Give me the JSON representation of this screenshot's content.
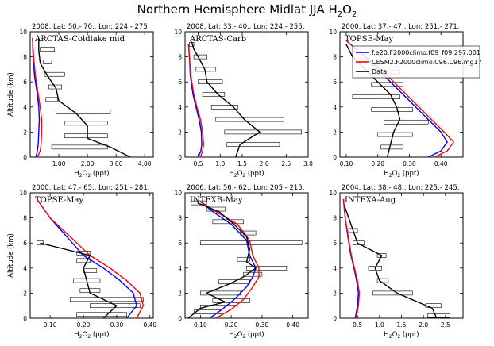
{
  "figure": {
    "title_main": "Northern Hemisphere Midlat JJA H",
    "title_sub": "2",
    "title_tail": "O",
    "title_sub2": "2"
  },
  "legend": {
    "entries": [
      {
        "label": "f.e20.F2000climo.f09_f09.297.001",
        "color": "#0000ff"
      },
      {
        "label": "CESM2.F2000climo.C96.C96.mg17",
        "color": "#ff0000"
      },
      {
        "label": "Data",
        "color": "#000000"
      }
    ]
  },
  "chart_data": [
    {
      "type": "line",
      "title": "2008, Lat:  50.- 70., Lon: 224.- 275",
      "campaign": "ARCTAS-Coldlake mid",
      "xlabel_main": "H",
      "xlabel_sub": "2",
      "xlabel_mid": "O",
      "xlabel_sub2": "2",
      "xlabel_unit": " (ppt)",
      "ylabel": "Altitude (km)",
      "xlim": [
        0,
        4.3
      ],
      "ylim": [
        0,
        10
      ],
      "xticks": [
        1.0,
        2.0,
        3.0,
        4.0
      ],
      "xticklabels": [
        "1.00",
        "2.00",
        "3.00",
        "4.00"
      ],
      "yticks": [
        0,
        2,
        4,
        6,
        8,
        10
      ],
      "yticklabels": [
        "0",
        "2",
        "4",
        "6",
        "8",
        "10"
      ],
      "series": [
        {
          "name": "f.e20.F2000climo.f09_f09.297.001",
          "color": "#0000ff",
          "x": [
            0.2,
            0.25,
            0.28,
            0.3,
            0.32,
            0.3,
            0.25,
            0.15,
            0.1,
            0.08
          ],
          "y": [
            0,
            0.5,
            1.0,
            2.0,
            3.0,
            4.0,
            5.0,
            6.5,
            8.0,
            9.5
          ]
        },
        {
          "name": "CESM2.F2000climo.C96.C96.mg17",
          "color": "#ff0000",
          "x": [
            0.25,
            0.35,
            0.38,
            0.4,
            0.4,
            0.35,
            0.28,
            0.18,
            0.12,
            0.08
          ],
          "y": [
            0,
            0.5,
            1.0,
            2.0,
            3.0,
            4.0,
            5.0,
            6.5,
            8.0,
            9.5
          ]
        },
        {
          "name": "Data",
          "color": "#000000",
          "x": [
            3.5,
            2.8,
            2.0,
            2.0,
            1.6,
            1.0,
            0.9,
            0.6,
            0.35,
            0.3,
            0.3
          ],
          "y": [
            0,
            0.8,
            1.5,
            2.5,
            3.5,
            4.5,
            5.5,
            6.5,
            7.5,
            8.5,
            9.5
          ]
        }
      ],
      "boxes": [
        {
          "y": 0.8,
          "x1": 0.75,
          "x2": 2.7
        },
        {
          "y": 1.7,
          "x1": 1.2,
          "x2": 2.7
        },
        {
          "y": 2.7,
          "x1": 1.2,
          "x2": 2.7
        },
        {
          "y": 3.6,
          "x1": 0.9,
          "x2": 2.8
        },
        {
          "y": 4.6,
          "x1": 0.55,
          "x2": 0.95
        },
        {
          "y": 5.6,
          "x1": 0.65,
          "x2": 1.1
        },
        {
          "y": 6.6,
          "x1": 0.5,
          "x2": 1.2
        },
        {
          "y": 7.6,
          "x1": 0.45,
          "x2": 0.75
        },
        {
          "y": 8.6,
          "x1": 0.35,
          "x2": 0.85
        }
      ]
    },
    {
      "type": "line",
      "title": "2008, Lat:  33.- 40., Lon: 224.- 255.",
      "campaign": "ARCTAS-Carb",
      "xlabel_main": "H",
      "xlabel_sub": "2",
      "xlabel_mid": "O",
      "xlabel_sub2": "2",
      "xlabel_unit": " (ppt)",
      "ylabel": "",
      "xlim": [
        0.2,
        3.0
      ],
      "ylim": [
        0,
        10
      ],
      "xticks": [
        0.5,
        1.0,
        1.5,
        2.0,
        2.5,
        3.0
      ],
      "xticklabels": [
        "0.5",
        "1.0",
        "1.5",
        "2.0",
        "2.5",
        "3.0"
      ],
      "yticks": [
        0,
        2,
        4,
        6,
        8,
        10
      ],
      "yticklabels": [
        "0",
        "2",
        "4",
        "6",
        "8",
        "10"
      ],
      "series": [
        {
          "name": "f.e20.F2000climo.f09_f09.297.001",
          "color": "#0000ff",
          "x": [
            0.5,
            0.56,
            0.58,
            0.57,
            0.52,
            0.45,
            0.38,
            0.32,
            0.3,
            0.28
          ],
          "y": [
            0,
            0.5,
            1.0,
            2.0,
            3.0,
            4.0,
            5.0,
            6.5,
            8.0,
            9.0
          ]
        },
        {
          "name": "CESM2.F2000climo.C96.C96.mg17",
          "color": "#ff0000",
          "x": [
            0.55,
            0.6,
            0.62,
            0.6,
            0.55,
            0.47,
            0.4,
            0.33,
            0.3,
            0.28
          ],
          "y": [
            0,
            0.5,
            1.0,
            2.0,
            3.0,
            4.0,
            5.0,
            6.5,
            8.0,
            9.0
          ]
        },
        {
          "name": "Data",
          "color": "#000000",
          "x": [
            1.35,
            1.45,
            1.9,
            1.55,
            1.3,
            0.95,
            0.7,
            0.65,
            0.5,
            0.4,
            0.35
          ],
          "y": [
            0,
            1.0,
            2.0,
            3.0,
            4.0,
            5.0,
            6.0,
            7.0,
            8.0,
            8.6,
            9.2
          ]
        }
      ],
      "boxes": [
        {
          "y": 1.0,
          "x1": 1.15,
          "x2": 2.35
        },
        {
          "y": 2.0,
          "x1": 1.1,
          "x2": 2.85
        },
        {
          "y": 3.0,
          "x1": 0.9,
          "x2": 2.45
        },
        {
          "y": 4.0,
          "x1": 0.8,
          "x2": 1.4
        },
        {
          "y": 5.0,
          "x1": 0.6,
          "x2": 1.1
        },
        {
          "y": 6.0,
          "x1": 0.5,
          "x2": 1.05
        },
        {
          "y": 7.0,
          "x1": 0.45,
          "x2": 0.9
        },
        {
          "y": 8.0,
          "x1": 0.4,
          "x2": 0.7
        },
        {
          "y": 9.0,
          "x1": 0.3,
          "x2": 0.4
        }
      ]
    },
    {
      "type": "line",
      "title": "2000, Lat:  37.- 47., Lon: 251.- 271.",
      "campaign": "TOPSE-May",
      "xlabel_main": "H",
      "xlabel_sub": "2",
      "xlabel_mid": "O",
      "xlabel_sub2": "2",
      "xlabel_unit": " (ppt)",
      "ylabel": "",
      "xlim": [
        0.08,
        0.47
      ],
      "ylim": [
        0,
        10
      ],
      "xticks": [
        0.1,
        0.2,
        0.3,
        0.4
      ],
      "xticklabels": [
        "0.10",
        "0.20",
        "0.30",
        "0.40"
      ],
      "yticks": [
        0,
        2,
        4,
        6,
        8,
        10
      ],
      "yticklabels": [
        "0",
        "2",
        "4",
        "6",
        "8",
        "10"
      ],
      "series": [
        {
          "name": "f.e20.F2000climo.f09_f09.297.001",
          "color": "#0000ff",
          "x": [
            0.36,
            0.4,
            0.42,
            0.4,
            0.36,
            0.32,
            0.28,
            0.24,
            0.2,
            0.15,
            0.1
          ],
          "y": [
            0,
            0.5,
            1.2,
            2.0,
            3.0,
            4.0,
            5.0,
            6.0,
            7.0,
            8.2,
            9.3
          ]
        },
        {
          "name": "CESM2.F2000climo.C96.C96.mg17",
          "color": "#ff0000",
          "x": [
            0.38,
            0.42,
            0.44,
            0.41,
            0.37,
            0.33,
            0.29,
            0.25,
            0.21,
            0.15,
            0.1
          ],
          "y": [
            0,
            0.5,
            1.2,
            2.0,
            3.0,
            4.0,
            5.0,
            6.0,
            7.0,
            8.2,
            9.3
          ]
        },
        {
          "name": "Data",
          "color": "#000000",
          "x": [
            0.23,
            0.24,
            0.25,
            0.27,
            0.26,
            0.24,
            0.2,
            0.16,
            0.12,
            0.1
          ],
          "y": [
            0,
            1.0,
            2.0,
            3.0,
            4.0,
            5.0,
            6.0,
            7.0,
            8.0,
            9.0
          ]
        }
      ],
      "boxes": [
        {
          "y": 0.8,
          "x1": 0.21,
          "x2": 0.28
        },
        {
          "y": 1.8,
          "x1": 0.2,
          "x2": 0.31
        },
        {
          "y": 2.8,
          "x1": 0.22,
          "x2": 0.36
        },
        {
          "y": 3.8,
          "x1": 0.18,
          "x2": 0.31
        },
        {
          "y": 4.8,
          "x1": 0.12,
          "x2": 0.27
        },
        {
          "y": 5.8,
          "x1": 0.18,
          "x2": 0.28
        },
        {
          "y": 6.8,
          "x1": 0.19,
          "x2": 0.27
        }
      ]
    },
    {
      "type": "line",
      "title": "2000, Lat:  47.- 65., Lon: 251.- 281.",
      "campaign": "TOPSE-May",
      "xlabel_main": "H",
      "xlabel_sub": "2",
      "xlabel_mid": "O",
      "xlabel_sub2": "2",
      "xlabel_unit": " (ppt)",
      "ylabel": "Altitude (km)",
      "xlim": [
        0.04,
        0.41
      ],
      "ylim": [
        0,
        10
      ],
      "xticks": [
        0.1,
        0.2,
        0.3,
        0.4
      ],
      "xticklabels": [
        "0.10",
        "0.20",
        "0.30",
        "0.40"
      ],
      "yticks": [
        0,
        2,
        4,
        6,
        8,
        10
      ],
      "yticklabels": [
        "0",
        "2",
        "4",
        "6",
        "8",
        "10"
      ],
      "series": [
        {
          "name": "f.e20.F2000climo.f09_f09.297.001",
          "color": "#0000ff",
          "x": [
            0.33,
            0.36,
            0.35,
            0.31,
            0.26,
            0.2,
            0.15,
            0.1,
            0.06
          ],
          "y": [
            0,
            1.0,
            2.0,
            3.0,
            4.0,
            5.0,
            6.5,
            8.0,
            9.5
          ]
        },
        {
          "name": "CESM2.F2000climo.C96.C96.mg17",
          "color": "#ff0000",
          "x": [
            0.36,
            0.38,
            0.37,
            0.33,
            0.28,
            0.22,
            0.16,
            0.1,
            0.06
          ],
          "y": [
            0,
            1.0,
            2.0,
            3.0,
            4.0,
            5.0,
            6.5,
            8.0,
            9.5
          ]
        },
        {
          "name": "Data",
          "color": "#000000",
          "x": [
            0.26,
            0.3,
            0.22,
            0.21,
            0.2,
            0.22,
            0.07
          ],
          "y": [
            0,
            1.0,
            2.0,
            3.0,
            4.0,
            5.0,
            6.0
          ]
        }
      ],
      "boxes": [
        {
          "y": 0.3,
          "x1": 0.18,
          "x2": 0.33
        },
        {
          "y": 1.0,
          "x1": 0.22,
          "x2": 0.37
        },
        {
          "y": 1.5,
          "x1": 0.16,
          "x2": 0.38
        },
        {
          "y": 2.2,
          "x1": 0.19,
          "x2": 0.25
        },
        {
          "y": 3.0,
          "x1": 0.17,
          "x2": 0.25
        },
        {
          "y": 3.8,
          "x1": 0.2,
          "x2": 0.24
        },
        {
          "y": 4.6,
          "x1": 0.18,
          "x2": 0.22
        },
        {
          "y": 5.2,
          "x1": 0.18,
          "x2": 0.22
        },
        {
          "y": 6.0,
          "x1": 0.06,
          "x2": 0.08
        }
      ]
    },
    {
      "type": "line",
      "title": "2006, Lat:  56.- 62., Lon: 205.- 215.",
      "campaign": "INTEXB-May",
      "xlabel_main": "H",
      "xlabel_sub": "2",
      "xlabel_mid": "O",
      "xlabel_sub2": "2",
      "xlabel_unit": " (ppt)",
      "ylabel": "",
      "xlim": [
        0.05,
        0.45
      ],
      "ylim": [
        0,
        10
      ],
      "xticks": [
        0.1,
        0.2,
        0.3,
        0.4
      ],
      "xticklabels": [
        "0.10",
        "0.20",
        "0.30",
        "0.40"
      ],
      "yticks": [
        0,
        2,
        4,
        6,
        8,
        10
      ],
      "yticklabels": [
        "0",
        "2",
        "4",
        "6",
        "8",
        "10"
      ],
      "series": [
        {
          "name": "f.e20.F2000climo.f09_f09.297.001",
          "color": "#0000ff",
          "x": [
            0.13,
            0.17,
            0.21,
            0.25,
            0.27,
            0.28,
            0.26,
            0.25,
            0.2,
            0.14,
            0.1
          ],
          "y": [
            0,
            0.7,
            1.5,
            2.5,
            3.3,
            4.0,
            5.0,
            6.2,
            7.5,
            8.5,
            9.3
          ]
        },
        {
          "name": "CESM2.F2000climo.C96.C96.mg17",
          "color": "#ff0000",
          "x": [
            0.15,
            0.2,
            0.24,
            0.27,
            0.29,
            0.29,
            0.27,
            0.26,
            0.22,
            0.15,
            0.1
          ],
          "y": [
            0,
            0.7,
            1.5,
            2.5,
            3.3,
            4.0,
            5.0,
            6.2,
            7.5,
            8.5,
            9.3
          ]
        },
        {
          "name": "Data",
          "color": "#000000",
          "x": [
            0.06,
            0.1,
            0.18,
            0.12,
            0.2,
            0.24,
            0.28,
            0.25,
            0.26,
            0.25,
            0.2,
            0.16,
            0.09
          ],
          "y": [
            0,
            0.8,
            1.3,
            2.0,
            2.8,
            3.3,
            4.0,
            4.5,
            5.5,
            6.5,
            7.7,
            8.5,
            9.2
          ]
        }
      ],
      "boxes": [
        {
          "y": 0.5,
          "x1": 0.08,
          "x2": 0.17
        },
        {
          "y": 0.9,
          "x1": 0.1,
          "x2": 0.22
        },
        {
          "y": 1.4,
          "x1": 0.14,
          "x2": 0.26
        },
        {
          "y": 2.0,
          "x1": 0.1,
          "x2": 0.23
        },
        {
          "y": 2.9,
          "x1": 0.16,
          "x2": 0.26
        },
        {
          "y": 3.5,
          "x1": 0.24,
          "x2": 0.3
        },
        {
          "y": 4.0,
          "x1": 0.25,
          "x2": 0.38
        },
        {
          "y": 4.7,
          "x1": 0.22,
          "x2": 0.26
        },
        {
          "y": 6.0,
          "x1": 0.1,
          "x2": 0.43
        },
        {
          "y": 6.8,
          "x1": 0.23,
          "x2": 0.28
        },
        {
          "y": 7.7,
          "x1": 0.14,
          "x2": 0.24
        },
        {
          "y": 8.7,
          "x1": 0.12,
          "x2": 0.18
        },
        {
          "y": 9.2,
          "x1": 0.07,
          "x2": 0.12
        }
      ]
    },
    {
      "type": "line",
      "title": "2004, Lat:  38.- 48., Lon: 225.- 245.",
      "campaign": "INTEXA-Aug",
      "xlabel_main": "H",
      "xlabel_sub": "2",
      "xlabel_mid": "O",
      "xlabel_sub2": "2",
      "xlabel_unit": " (ppt)",
      "ylabel": "",
      "xlim": [
        0.1,
        2.9
      ],
      "ylim": [
        0,
        10
      ],
      "xticks": [
        0.5,
        1.0,
        1.5,
        2.0,
        2.5
      ],
      "xticklabels": [
        "0.5",
        "1.0",
        "1.5",
        "2.0",
        "2.5"
      ],
      "yticks": [
        0,
        2,
        4,
        6,
        8,
        10
      ],
      "yticklabels": [
        "0",
        "2",
        "4",
        "6",
        "8",
        "10"
      ],
      "series": [
        {
          "name": "f.e20.F2000climo.f09_f09.297.001",
          "color": "#0000ff",
          "x": [
            0.45,
            0.5,
            0.52,
            0.48,
            0.42,
            0.35,
            0.28,
            0.22,
            0.18
          ],
          "y": [
            0,
            1.0,
            2.0,
            3.0,
            4.0,
            5.0,
            6.5,
            8.0,
            9.5
          ]
        },
        {
          "name": "CESM2.F2000climo.C96.C96.mg17",
          "color": "#ff0000",
          "x": [
            0.47,
            0.52,
            0.54,
            0.5,
            0.43,
            0.36,
            0.29,
            0.22,
            0.18
          ],
          "y": [
            0,
            1.0,
            2.0,
            3.0,
            4.0,
            5.0,
            6.5,
            8.0,
            9.5
          ]
        },
        {
          "name": "Data",
          "color": "#000000",
          "x": [
            2.3,
            2.2,
            1.4,
            1.0,
            0.9,
            1.05,
            0.5,
            0.4,
            0.2
          ],
          "y": [
            0,
            0.8,
            2.0,
            3.0,
            4.0,
            5.0,
            6.0,
            7.0,
            9.0
          ]
        }
      ],
      "boxes": [
        {
          "y": 0.2,
          "x1": 2.1,
          "x2": 2.6
        },
        {
          "y": 1.0,
          "x1": 2.05,
          "x2": 2.4
        },
        {
          "y": 2.0,
          "x1": 0.85,
          "x2": 1.75
        },
        {
          "y": 3.0,
          "x1": 0.95,
          "x2": 1.2
        },
        {
          "y": 4.0,
          "x1": 0.75,
          "x2": 1.05
        },
        {
          "y": 5.0,
          "x1": 0.95,
          "x2": 1.15
        },
        {
          "y": 6.0,
          "x1": 0.4,
          "x2": 0.65
        },
        {
          "y": 7.0,
          "x1": 0.3,
          "x2": 0.5
        }
      ]
    }
  ]
}
